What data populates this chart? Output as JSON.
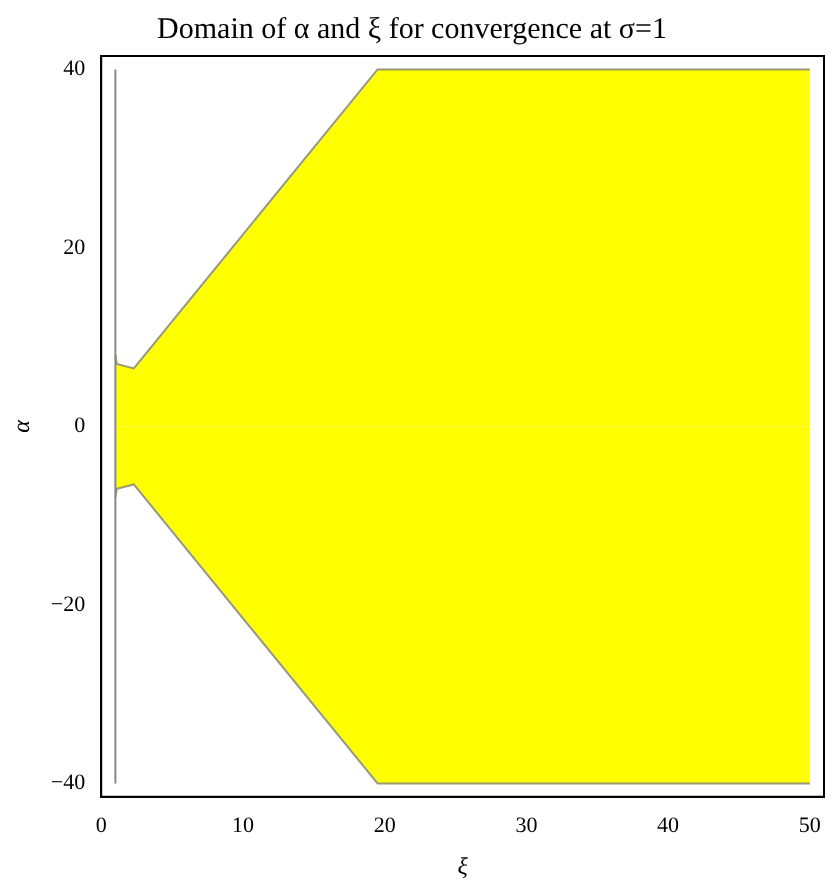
{
  "chart_data": {
    "type": "area",
    "title": "Domain of α and ξ for convergence at σ=1",
    "xlabel": "ξ",
    "ylabel": "α",
    "series": [
      {
        "color": "#ffff00",
        "x": [
          1,
          1.1,
          2.3,
          19.5,
          50
        ],
        "values": [
          8,
          7,
          6.5,
          40,
          40
        ]
      },
      {
        "color": "#ffff00",
        "x": [
          1,
          1.1,
          2.3,
          19.5,
          50
        ],
        "values": [
          -8,
          -7,
          -6.5,
          -40,
          -40
        ]
      }
    ],
    "xlim": [
      0,
      51
    ],
    "xticks": [
      0,
      10,
      20,
      30,
      40,
      50
    ],
    "ylim": [
      -41.5,
      41.5
    ],
    "yticks": [
      -40,
      -20,
      0,
      20,
      40
    ],
    "ref_lines": [
      {
        "axis": "x",
        "value": 1,
        "color": "#888888"
      }
    ],
    "grid": false,
    "legend": false,
    "marker": "none",
    "line_style": "solid"
  }
}
